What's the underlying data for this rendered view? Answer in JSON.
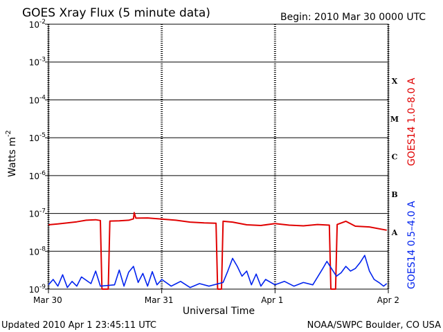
{
  "header": {
    "title": "GOES Xray Flux (5 minute data)",
    "begin": "Begin:  2010 Mar 30 0000 UTC"
  },
  "footer": {
    "updated": "Updated 2010 Apr  1 23:45:11 UTC",
    "source": "NOAA/SWPC Boulder, CO USA"
  },
  "chart_data": {
    "type": "line",
    "title": "GOES Xray Flux (5 minute data)",
    "xlabel": "Universal Time",
    "ylabel": "Watts m",
    "ylabel_sup": "-2",
    "y_scale": "log",
    "ylim": [
      1e-09,
      0.01
    ],
    "xlim": [
      "2010-03-30",
      "2010-04-02"
    ],
    "x_ticks": [
      {
        "date": "2010-03-30",
        "label": "Mar 30"
      },
      {
        "date": "2010-03-31",
        "label": "Mar 31"
      },
      {
        "date": "2010-04-01",
        "label": "Apr 1"
      },
      {
        "date": "2010-04-02",
        "label": "Apr 2"
      }
    ],
    "y_ticks": [
      {
        "value": 1e-09,
        "exp": "-9"
      },
      {
        "value": 1e-08,
        "exp": "-8"
      },
      {
        "value": 1e-07,
        "exp": "-7"
      },
      {
        "value": 1e-06,
        "exp": "-6"
      },
      {
        "value": 1e-05,
        "exp": "-5"
      },
      {
        "value": 0.0001,
        "exp": "-4"
      },
      {
        "value": 0.001,
        "exp": "-3"
      },
      {
        "value": 0.01,
        "exp": "-2"
      }
    ],
    "flare_classes": [
      {
        "label": "X",
        "value": 0.0001
      },
      {
        "label": "M",
        "value": 1e-05
      },
      {
        "label": "C",
        "value": 1e-06
      },
      {
        "label": "B",
        "value": 1e-07
      },
      {
        "label": "A",
        "value": 1e-08
      }
    ],
    "grid": true,
    "series": [
      {
        "name": "GOES14 1.0–8.0 A",
        "color": "#e00000",
        "points": [
          [
            "2010-03-30 00:00",
            5e-08
          ],
          [
            "2010-03-30 02:00",
            5.3e-08
          ],
          [
            "2010-03-30 04:00",
            5.6e-08
          ],
          [
            "2010-03-30 06:00",
            6e-08
          ],
          [
            "2010-03-30 08:00",
            6.6e-08
          ],
          [
            "2010-03-30 10:00",
            6.8e-08
          ],
          [
            "2010-03-30 11:00",
            6.5e-08
          ],
          [
            "2010-03-30 11:20",
            1e-09
          ],
          [
            "2010-03-30 12:40",
            1e-09
          ],
          [
            "2010-03-30 13:00",
            6.3e-08
          ],
          [
            "2010-03-30 15:00",
            6.4e-08
          ],
          [
            "2010-03-30 17:00",
            6.6e-08
          ],
          [
            "2010-03-30 18:00",
            7.2e-08
          ],
          [
            "2010-03-30 18:10",
            1.05e-07
          ],
          [
            "2010-03-30 18:30",
            7.5e-08
          ],
          [
            "2010-03-30 21:00",
            7.6e-08
          ],
          [
            "2010-03-31 00:00",
            7.1e-08
          ],
          [
            "2010-03-31 03:00",
            6.6e-08
          ],
          [
            "2010-03-31 06:00",
            5.9e-08
          ],
          [
            "2010-03-31 09:00",
            5.6e-08
          ],
          [
            "2010-03-31 11:30",
            5.5e-08
          ],
          [
            "2010-03-31 11:50",
            1e-09
          ],
          [
            "2010-03-31 12:40",
            1e-09
          ],
          [
            "2010-03-31 13:00",
            6.2e-08
          ],
          [
            "2010-03-31 15:00",
            5.9e-08
          ],
          [
            "2010-03-31 18:00",
            5e-08
          ],
          [
            "2010-03-31 21:00",
            4.8e-08
          ],
          [
            "2010-04-01 00:00",
            5.4e-08
          ],
          [
            "2010-04-01 03:00",
            4.9e-08
          ],
          [
            "2010-04-01 06:00",
            4.7e-08
          ],
          [
            "2010-04-01 09:00",
            5.1e-08
          ],
          [
            "2010-04-01 11:30",
            4.9e-08
          ],
          [
            "2010-04-01 11:50",
            1e-09
          ],
          [
            "2010-04-01 12:50",
            1e-09
          ],
          [
            "2010-04-01 13:10",
            5.1e-08
          ],
          [
            "2010-04-01 15:00",
            6.2e-08
          ],
          [
            "2010-04-01 17:00",
            4.6e-08
          ],
          [
            "2010-04-01 20:00",
            4.4e-08
          ],
          [
            "2010-04-01 23:40",
            3.6e-08
          ]
        ]
      },
      {
        "name": "GOES14 0.5–4.0 A",
        "color": "#0022ee",
        "points": [
          [
            "2010-03-30 00:00",
            1.3e-09
          ],
          [
            "2010-03-30 01:00",
            1.8e-09
          ],
          [
            "2010-03-30 02:00",
            1.2e-09
          ],
          [
            "2010-03-30 03:00",
            2.4e-09
          ],
          [
            "2010-03-30 04:00",
            1.1e-09
          ],
          [
            "2010-03-30 05:00",
            1.6e-09
          ],
          [
            "2010-03-30 06:00",
            1.2e-09
          ],
          [
            "2010-03-30 07:00",
            2.1e-09
          ],
          [
            "2010-03-30 09:00",
            1.4e-09
          ],
          [
            "2010-03-30 10:00",
            3e-09
          ],
          [
            "2010-03-30 11:00",
            1.2e-09
          ],
          [
            "2010-03-30 14:00",
            1.3e-09
          ],
          [
            "2010-03-30 15:00",
            3.2e-09
          ],
          [
            "2010-03-30 16:00",
            1.2e-09
          ],
          [
            "2010-03-30 17:00",
            2.8e-09
          ],
          [
            "2010-03-30 18:00",
            4e-09
          ],
          [
            "2010-03-30 19:00",
            1.5e-09
          ],
          [
            "2010-03-30 20:00",
            2.6e-09
          ],
          [
            "2010-03-30 21:00",
            1.2e-09
          ],
          [
            "2010-03-30 22:00",
            2.9e-09
          ],
          [
            "2010-03-30 23:00",
            1.3e-09
          ],
          [
            "2010-03-31 00:00",
            1.8e-09
          ],
          [
            "2010-03-31 02:00",
            1.2e-09
          ],
          [
            "2010-03-31 04:00",
            1.6e-09
          ],
          [
            "2010-03-31 06:00",
            1.1e-09
          ],
          [
            "2010-03-31 08:00",
            1.4e-09
          ],
          [
            "2010-03-31 10:00",
            1.2e-09
          ],
          [
            "2010-03-31 13:00",
            1.5e-09
          ],
          [
            "2010-03-31 14:00",
            3e-09
          ],
          [
            "2010-03-31 15:00",
            6.5e-09
          ],
          [
            "2010-03-31 16:00",
            4e-09
          ],
          [
            "2010-03-31 17:00",
            2.2e-09
          ],
          [
            "2010-03-31 18:00",
            3e-09
          ],
          [
            "2010-03-31 19:00",
            1.3e-09
          ],
          [
            "2010-03-31 20:00",
            2.5e-09
          ],
          [
            "2010-03-31 21:00",
            1.2e-09
          ],
          [
            "2010-03-31 22:00",
            1.8e-09
          ],
          [
            "2010-04-01 00:00",
            1.3e-09
          ],
          [
            "2010-04-01 02:00",
            1.6e-09
          ],
          [
            "2010-04-01 04:00",
            1.2e-09
          ],
          [
            "2010-04-01 06:00",
            1.5e-09
          ],
          [
            "2010-04-01 08:00",
            1.3e-09
          ],
          [
            "2010-04-01 10:00",
            3.3e-09
          ],
          [
            "2010-04-01 11:00",
            5.4e-09
          ],
          [
            "2010-04-01 13:00",
            2.2e-09
          ],
          [
            "2010-04-01 14:00",
            2.7e-09
          ],
          [
            "2010-04-01 15:00",
            4e-09
          ],
          [
            "2010-04-01 16:00",
            3e-09
          ],
          [
            "2010-04-01 17:00",
            3.5e-09
          ],
          [
            "2010-04-01 18:00",
            5e-09
          ],
          [
            "2010-04-01 19:00",
            7.8e-09
          ],
          [
            "2010-04-01 20:00",
            3e-09
          ],
          [
            "2010-04-01 21:00",
            1.8e-09
          ],
          [
            "2010-04-01 22:00",
            1.5e-09
          ],
          [
            "2010-04-01 23:00",
            1.2e-09
          ],
          [
            "2010-04-01 23:40",
            1.4e-09
          ]
        ]
      }
    ]
  }
}
